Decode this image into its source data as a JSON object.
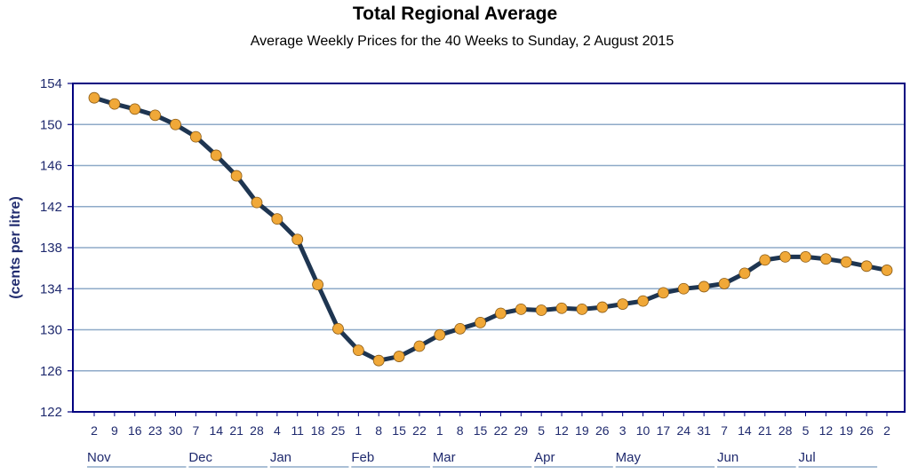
{
  "chart_data": {
    "type": "line",
    "title": "Total Regional Average",
    "subtitle": "Average Weekly Prices for the 40 Weeks to Sunday, 2 August 2015",
    "ylabel": "(cents per litre)",
    "xlabel": "",
    "ylim": [
      122,
      154
    ],
    "yticks": [
      122,
      126,
      130,
      134,
      138,
      142,
      146,
      150,
      154
    ],
    "grid": true,
    "x": [
      "2",
      "9",
      "16",
      "23",
      "30",
      "7",
      "14",
      "21",
      "28",
      "4",
      "11",
      "18",
      "25",
      "1",
      "8",
      "15",
      "22",
      "1",
      "8",
      "15",
      "22",
      "29",
      "5",
      "12",
      "19",
      "26",
      "3",
      "10",
      "17",
      "24",
      "31",
      "7",
      "14",
      "21",
      "28",
      "5",
      "12",
      "19",
      "26",
      "2"
    ],
    "months": [
      {
        "label": "Nov",
        "start": 0,
        "end": 4
      },
      {
        "label": "Dec",
        "start": 5,
        "end": 8
      },
      {
        "label": "Jan",
        "start": 9,
        "end": 12
      },
      {
        "label": "Feb",
        "start": 13,
        "end": 16
      },
      {
        "label": "Mar",
        "start": 17,
        "end": 21
      },
      {
        "label": "Apr",
        "start": 22,
        "end": 25
      },
      {
        "label": "May",
        "start": 26,
        "end": 30
      },
      {
        "label": "Jun",
        "start": 31,
        "end": 34
      },
      {
        "label": "Jul",
        "start": 35,
        "end": 38
      }
    ],
    "series": [
      {
        "values": [
          152.6,
          152.0,
          151.5,
          150.9,
          150.0,
          148.8,
          147.0,
          145.0,
          142.4,
          140.8,
          138.8,
          134.4,
          130.1,
          128.0,
          127.0,
          127.4,
          128.4,
          129.5,
          130.1,
          130.7,
          131.6,
          132.0,
          131.9,
          132.1,
          132.0,
          132.2,
          132.5,
          132.8,
          133.6,
          134.0,
          134.2,
          134.5,
          135.5,
          136.8,
          137.1,
          137.1,
          136.9,
          136.6,
          136.2,
          135.8
        ],
        "line_color": "#1e3551",
        "marker_color": "#f0a838"
      }
    ],
    "colors": {
      "axis_text": "#1f2a6e",
      "grid": "#8eaac8",
      "frame": "#000080"
    }
  }
}
